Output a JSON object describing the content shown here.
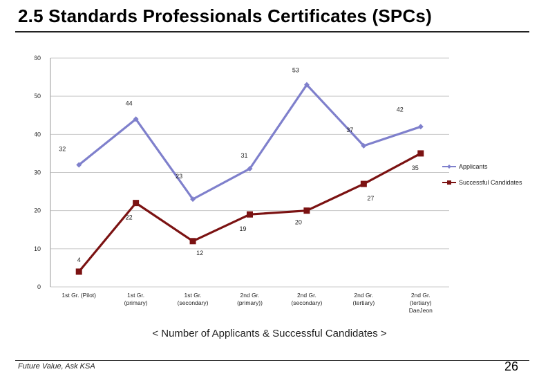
{
  "slide": {
    "title": "2.5 Standards Professionals Certificates (SPCs)",
    "caption": "<  Number of Applicants & Successful Candidates >",
    "footer_brand": "Future Value, Ask KSA",
    "page_number": "26"
  },
  "colors": {
    "applicants": "#7F80CC",
    "successful": "#7B1212",
    "grid": "#C8C8C8"
  },
  "chart_data": {
    "type": "line",
    "title": "",
    "xlabel": "",
    "ylabel": "",
    "categories": [
      [
        "1st Gr. (Pilot)"
      ],
      [
        "1st Gr.",
        "(primary)"
      ],
      [
        "1st Gr.",
        "(secondary)"
      ],
      [
        "2nd Gr.",
        "(primary))"
      ],
      [
        "2nd Gr.",
        "(secondary)"
      ],
      [
        "2nd Gr.",
        "(tertiary)"
      ],
      [
        "2nd Gr.",
        "(tertiary)",
        "DaeJeon"
      ]
    ],
    "series": [
      {
        "name": "Applicants",
        "values": [
          32,
          44,
          23,
          31,
          53,
          37,
          42
        ],
        "marker": "diamond"
      },
      {
        "name": "Successful Candidates",
        "values": [
          4,
          22,
          12,
          19,
          20,
          27,
          35
        ],
        "marker": "square"
      }
    ],
    "ylim": [
      0,
      60
    ],
    "yticks": [
      0,
      10,
      20,
      30,
      40,
      50,
      60
    ],
    "grid": true,
    "legend": "right"
  }
}
